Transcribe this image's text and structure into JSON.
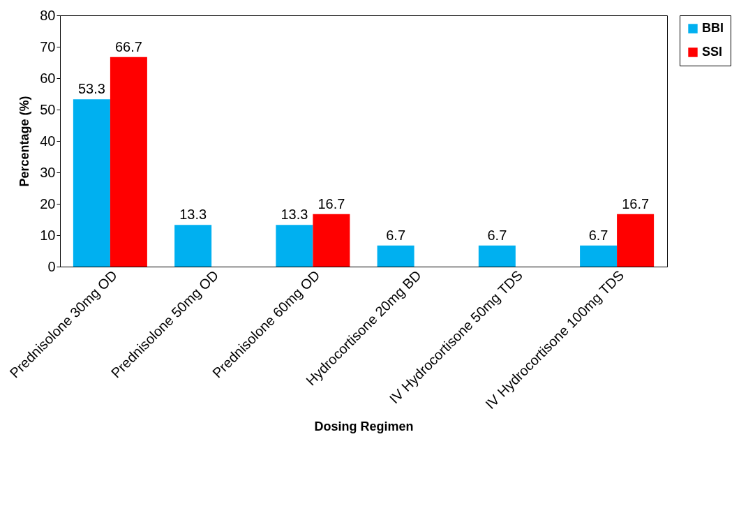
{
  "chart_data": {
    "type": "bar",
    "xlabel": "Dosing Regimen",
    "ylabel": "Percentage (%)",
    "categories": [
      "Prednisolone 30mg OD",
      "Prednisolone 50mg OD",
      "Prednisolone 60mg OD",
      "Hydrocortisone 20mg BD",
      "IV Hydrocortisone 50mg TDS",
      "IV Hydrocortisone 100mg TDS"
    ],
    "series": [
      {
        "name": "BBI",
        "color": "#00b0f0",
        "values": [
          53.3,
          13.3,
          13.3,
          6.7,
          6.7,
          6.7
        ]
      },
      {
        "name": "SSI",
        "color": "#ff0000",
        "values": [
          66.7,
          null,
          16.7,
          null,
          null,
          16.7
        ]
      }
    ],
    "ylim": [
      0,
      80
    ],
    "yticks": [
      0,
      10,
      20,
      30,
      40,
      50,
      60,
      70,
      80
    ],
    "grid": false,
    "legend": "right",
    "data_labels": true
  }
}
